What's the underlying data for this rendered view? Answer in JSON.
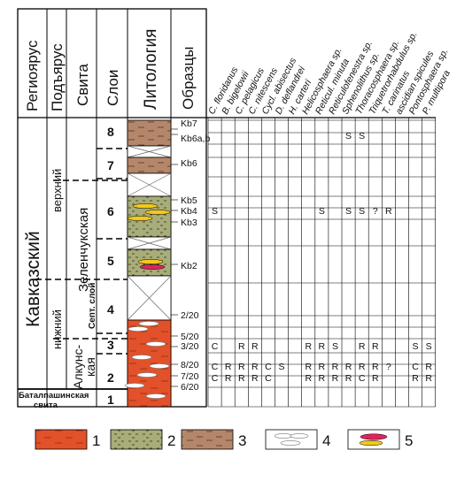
{
  "header": {
    "regioyarus": "Региоярус",
    "podyarus": "Подъярус",
    "svita": "Свита",
    "sloi": "Слои",
    "litologiya": "Литология",
    "obraztsy": "Образцы"
  },
  "taxa": [
    "C. floridanus",
    "B. bigelowii",
    "C. pelagicus",
    "C. nitescens",
    "Cycl. abisectus",
    "D. deflandrei",
    "H. carteri",
    "Helicosphaera sp.",
    "Reticul. minuta",
    "Reticulofenestra sp.",
    "Sphenolithus sp.",
    "Thoracosphaera sp.",
    "Triquetrorhabdulus sp.",
    "T. carinatus",
    "ascidian spicules",
    "Pontosphaera sp.",
    "P. multipora"
  ],
  "units": {
    "regioyarus": "Кавказский",
    "podyarus_upper": "верхний",
    "podyarus_lower": "нижний",
    "svita_zelen": "Зеленчукская",
    "svita_zelen_sub": "Септ. слой",
    "svita_alkun_1": "Алкунс-",
    "svita_alkun_2": "кая",
    "svita_batalp_1": "Баталпашинская",
    "svita_batalp_2": "свита"
  },
  "layers": [
    "8",
    "7",
    "6",
    "5",
    "4",
    "3",
    "2",
    "1"
  ],
  "samples": [
    {
      "id": "Kb7",
      "cells": [
        "",
        "",
        "",
        "",
        "",
        "",
        "",
        "",
        "",
        "",
        "",
        "",
        "",
        "",
        "",
        "",
        ""
      ]
    },
    {
      "id": "Kb6a,b",
      "cells": [
        "",
        "",
        "",
        "",
        "",
        "",
        "",
        "",
        "",
        "",
        "S",
        "S",
        "",
        "",
        "",
        "",
        ""
      ]
    },
    {
      "id": "Kb6",
      "cells": [
        "",
        "",
        "",
        "",
        "",
        "",
        "",
        "",
        "",
        "",
        "",
        "",
        "",
        "",
        "",
        "",
        ""
      ]
    },
    {
      "id": "Kb5",
      "cells": [
        "",
        "",
        "",
        "",
        "",
        "",
        "",
        "",
        "",
        "",
        "",
        "",
        "",
        "",
        "",
        "",
        ""
      ]
    },
    {
      "id": "Kb4",
      "cells": [
        "S",
        "",
        "",
        "",
        "",
        "",
        "",
        "",
        "S",
        "",
        "S",
        "S",
        "?",
        "R",
        "",
        "",
        ""
      ]
    },
    {
      "id": "Kb3",
      "cells": [
        "",
        "",
        "",
        "",
        "",
        "",
        "",
        "",
        "",
        "",
        "",
        "",
        "",
        "",
        "",
        "",
        ""
      ]
    },
    {
      "id": "Kb2",
      "cells": [
        "",
        "",
        "",
        "",
        "",
        "",
        "",
        "",
        "",
        "",
        "",
        "",
        "",
        "",
        "",
        "",
        ""
      ]
    },
    {
      "id": "2/20",
      "cells": [
        "",
        "",
        "",
        "",
        "",
        "",
        "",
        "",
        "",
        "",
        "",
        "",
        "",
        "",
        "",
        "",
        ""
      ]
    },
    {
      "id": "5/20",
      "cells": [
        "",
        "",
        "",
        "",
        "",
        "",
        "",
        "",
        "",
        "",
        "",
        "",
        "",
        "",
        "",
        "",
        ""
      ]
    },
    {
      "id": "3/20",
      "cells": [
        "C",
        "",
        "R",
        "R",
        "",
        "",
        "",
        "R",
        "R",
        "S",
        "",
        "R",
        "R",
        "",
        "",
        "S",
        "S"
      ]
    },
    {
      "id": "8/20",
      "cells": [
        "C",
        "R",
        "R",
        "R",
        "C",
        "S",
        "",
        "R",
        "R",
        "R",
        "R",
        "R",
        "R",
        "?",
        "",
        "C",
        "R"
      ]
    },
    {
      "id": "7/20",
      "cells": [
        "C",
        "R",
        "R",
        "R",
        "C",
        "",
        "",
        "R",
        "R",
        "R",
        "R",
        "C",
        "R",
        "",
        "",
        "R",
        "R"
      ]
    },
    {
      "id": "6/20",
      "cells": [
        "",
        "",
        "",
        "",
        "",
        "",
        "",
        "",
        "",
        "",
        "",
        "",
        "",
        "",
        "",
        "",
        ""
      ]
    }
  ],
  "legend": [
    {
      "num": "1",
      "label": "1",
      "kind": "red-clay"
    },
    {
      "num": "2",
      "label": "2",
      "kind": "green-silt"
    },
    {
      "num": "3",
      "label": "3",
      "kind": "brown-clay"
    },
    {
      "num": "4",
      "label": "4",
      "kind": "concretions"
    },
    {
      "num": "5",
      "label": "5",
      "kind": "lenses"
    }
  ],
  "colors": {
    "red_clay": "#e2512a",
    "green_silt": "#a8ad79",
    "brown_clay": "#b5876a",
    "lens_red": "#e0245e",
    "lens_yellow": "#f2c81c"
  }
}
